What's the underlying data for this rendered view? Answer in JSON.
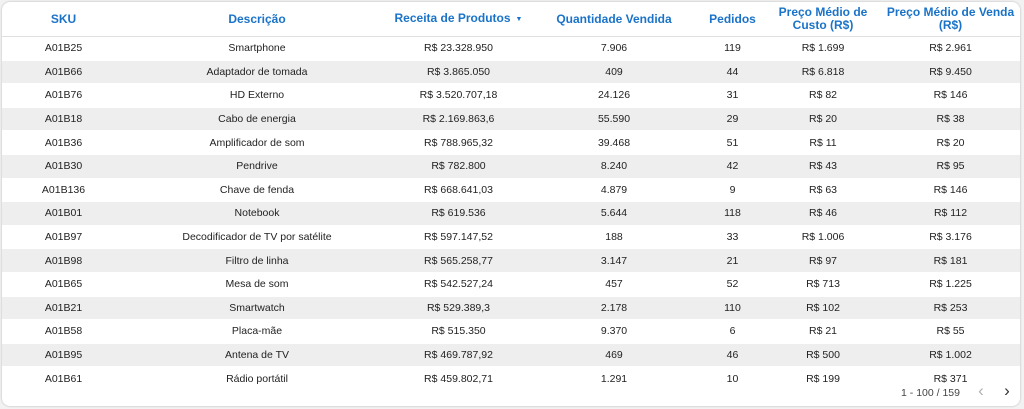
{
  "table": {
    "columns": [
      "SKU",
      "Descrição",
      "Receita de Produtos",
      "Quantidade Vendida",
      "Pedidos",
      "Preço Médio de Custo (R$)",
      "Preço Médio de Venda (R$)"
    ],
    "sort_icon": "sort-down-icon",
    "rows": [
      [
        "A01B25",
        "Smartphone",
        "R$ 23.328.950",
        "7.906",
        "119",
        "R$ 1.699",
        "R$ 2.961"
      ],
      [
        "A01B66",
        "Adaptador de tomada",
        "R$ 3.865.050",
        "409",
        "44",
        "R$ 6.818",
        "R$ 9.450"
      ],
      [
        "A01B76",
        "HD Externo",
        "R$ 3.520.707,18",
        "24.126",
        "31",
        "R$ 82",
        "R$ 146"
      ],
      [
        "A01B18",
        "Cabo de energia",
        "R$ 2.169.863,6",
        "55.590",
        "29",
        "R$ 20",
        "R$ 38"
      ],
      [
        "A01B36",
        "Amplificador de som",
        "R$ 788.965,32",
        "39.468",
        "51",
        "R$ 11",
        "R$ 20"
      ],
      [
        "A01B30",
        "Pendrive",
        "R$ 782.800",
        "8.240",
        "42",
        "R$ 43",
        "R$ 95"
      ],
      [
        "A01B136",
        "Chave de fenda",
        "R$ 668.641,03",
        "4.879",
        "9",
        "R$ 63",
        "R$ 146"
      ],
      [
        "A01B01",
        "Notebook",
        "R$ 619.536",
        "5.644",
        "118",
        "R$ 46",
        "R$ 112"
      ],
      [
        "A01B97",
        "Decodificador de TV por satélite",
        "R$ 597.147,52",
        "188",
        "33",
        "R$ 1.006",
        "R$ 3.176"
      ],
      [
        "A01B98",
        "Filtro de linha",
        "R$ 565.258,77",
        "3.147",
        "21",
        "R$ 97",
        "R$ 181"
      ],
      [
        "A01B65",
        "Mesa de som",
        "R$ 542.527,24",
        "457",
        "52",
        "R$ 713",
        "R$ 1.225"
      ],
      [
        "A01B21",
        "Smartwatch",
        "R$ 529.389,3",
        "2.178",
        "110",
        "R$ 102",
        "R$ 253"
      ],
      [
        "A01B58",
        "Placa-mãe",
        "R$ 515.350",
        "9.370",
        "6",
        "R$ 21",
        "R$ 55"
      ],
      [
        "A01B95",
        "Antena de TV",
        "R$ 469.787,92",
        "469",
        "46",
        "R$ 500",
        "R$ 1.002"
      ],
      [
        "A01B61",
        "Rádio portátil",
        "R$ 459.802,71",
        "1.291",
        "10",
        "R$ 199",
        "R$ 371"
      ]
    ]
  },
  "pagination": {
    "range_text": "1 - 100 / 159",
    "prev_icon": "chevron-left-icon",
    "next_icon": "chevron-right-icon"
  },
  "colors": {
    "header_text": "#1a73c8",
    "stripe": "#eeeeee"
  }
}
